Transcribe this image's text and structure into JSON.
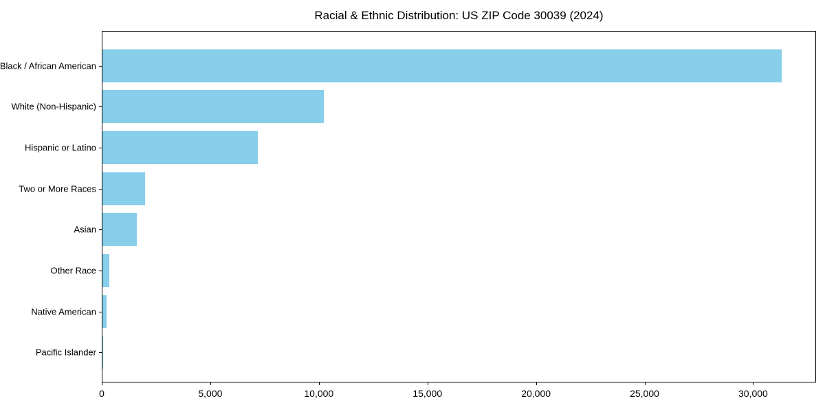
{
  "chart_data": {
    "type": "bar",
    "orientation": "horizontal",
    "title": "Racial & Ethnic Distribution: US ZIP Code 30039 (2024)",
    "categories": [
      "Black / African American",
      "White (Non-Hispanic)",
      "Hispanic or Latino",
      "Two or More Races",
      "Asian",
      "Other Race",
      "Native American",
      "Pacific Islander"
    ],
    "values": [
      31300,
      10200,
      7160,
      1960,
      1580,
      320,
      190,
      30
    ],
    "xlabel": "",
    "ylabel": "",
    "xlim": [
      0,
      32900
    ],
    "x_ticks": [
      0,
      5000,
      10000,
      15000,
      20000,
      25000,
      30000
    ],
    "x_tick_labels": [
      "0",
      "5,000",
      "10,000",
      "15,000",
      "20,000",
      "25,000",
      "30,000"
    ],
    "bar_color": "#87CEEB",
    "axis_color": "#000000",
    "background_color": "#ffffff",
    "grid": false,
    "legend": null
  }
}
